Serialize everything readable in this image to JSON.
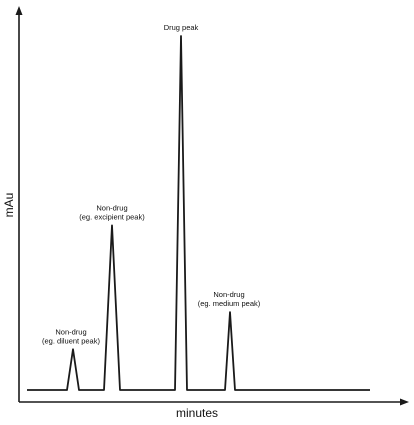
{
  "chart_data": {
    "type": "line",
    "xlabel": "minutes",
    "ylabel": "mAu",
    "baseline": 0,
    "peaks": [
      {
        "lines": [
          "Non-drug",
          "(eg. diluent peak)"
        ],
        "height": 11.5
      },
      {
        "lines": [
          "Non-drug",
          "(eg. excipient peak)"
        ],
        "height": 46.5
      },
      {
        "lines": [
          "Drug peak"
        ],
        "height": 100
      },
      {
        "lines": [
          "Non-drug",
          "(eg. medium peak)"
        ],
        "height": 22
      }
    ],
    "colors": {
      "axis": "#1a1a1a",
      "trace": "#1a1a1a"
    }
  }
}
